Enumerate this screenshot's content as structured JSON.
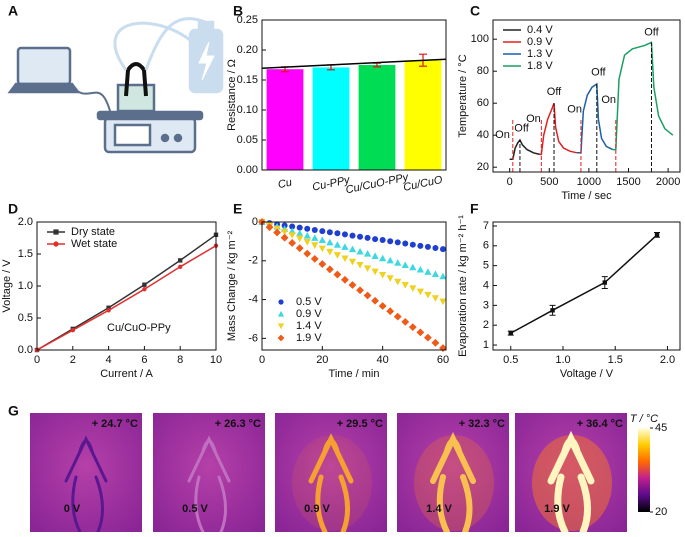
{
  "panel_labels": [
    "A",
    "B",
    "C",
    "D",
    "E",
    "F",
    "G"
  ],
  "chart_data": [
    {
      "type": "bar",
      "y_label": "Resistance / Ω",
      "categories": [
        "Cu",
        "Cu-PPy",
        "Cu/CuO-PPy",
        "Cu/CuO"
      ],
      "values": [
        0.168,
        0.171,
        0.175,
        0.183
      ],
      "errors": [
        0.004,
        0.004,
        0.003,
        0.01
      ],
      "colors": [
        "#ff00ff",
        "#00ffff",
        "#00dd55",
        "#ffff00"
      ],
      "error_color": "#e01010",
      "fit_color": "#000000",
      "ylim": [
        0,
        0.25
      ],
      "yticks": [
        {
          "value": 0,
          "label": "0.00"
        },
        0.05,
        {
          "value": 0.1,
          "label": "0.10"
        },
        0.15,
        {
          "value": 0.2,
          "label": "0.20"
        },
        0.25
      ]
    },
    {
      "type": "line",
      "y_label": "Temperature / °C",
      "x_label": "Time / sec",
      "xlim": [
        -210,
        2150
      ],
      "xticks": [
        0,
        500,
        1000,
        1500,
        2000
      ],
      "ylim": [
        17,
        112
      ],
      "yticks": [
        20,
        40,
        60,
        80,
        100
      ],
      "legend": "upper left",
      "annotations": [
        "On",
        "Off",
        "On",
        "Off",
        "On",
        "Off",
        "On",
        "Off"
      ],
      "series": [
        {
          "name": "0.4 V",
          "color": "#222222",
          "x": [
            0,
            40,
            70,
            100,
            130,
            160,
            220,
            300,
            380
          ],
          "values": [
            25,
            25,
            32,
            35,
            37,
            34,
            31,
            29,
            28
          ]
        },
        {
          "name": "0.9 V",
          "color": "#e02020",
          "x": [
            380,
            400,
            430,
            480,
            530,
            560,
            580,
            620,
            680,
            760,
            850
          ],
          "values": [
            28,
            28,
            40,
            50,
            56,
            60,
            45,
            36,
            32,
            30,
            29
          ]
        },
        {
          "name": "1.3 V",
          "color": "#1f5fa8",
          "x": [
            850,
            900,
            930,
            980,
            1040,
            1100,
            1120,
            1160,
            1220,
            1300
          ],
          "values": [
            29,
            29,
            55,
            65,
            70,
            72,
            50,
            38,
            33,
            31
          ]
        },
        {
          "name": "1.8 V",
          "color": "#1aa060",
          "x": [
            1300,
            1340,
            1380,
            1450,
            1550,
            1700,
            1790,
            1820,
            1880,
            1960,
            2060
          ],
          "values": [
            31,
            31,
            75,
            90,
            94,
            96,
            98,
            70,
            52,
            44,
            40
          ]
        }
      ]
    },
    {
      "type": "line",
      "y_label": "Voltage / V",
      "x_label": "Current / A",
      "xlim": [
        0,
        10
      ],
      "xticks": [
        0,
        2,
        4,
        6,
        8,
        10
      ],
      "ylim": [
        0,
        2
      ],
      "yticks": [
        {
          "value": 0,
          "label": "0.0"
        },
        0.5,
        {
          "value": 1,
          "label": "1.0"
        },
        1.5,
        {
          "value": 2,
          "label": "2.0"
        }
      ],
      "legend": "upper left",
      "annotation": "Cu/CuO-PPy",
      "x": [
        0,
        2,
        4,
        6,
        8,
        10
      ],
      "series": [
        {
          "name": "Dry state",
          "color": "#333333",
          "marker": "s",
          "values": [
            0,
            0.33,
            0.66,
            1.02,
            1.4,
            1.8
          ]
        },
        {
          "name": "Wet state",
          "color": "#e03030",
          "marker": "o",
          "values": [
            0,
            0.31,
            0.62,
            0.95,
            1.3,
            1.63
          ]
        }
      ]
    },
    {
      "type": "scatter",
      "y_label": "Mass Change / kg m⁻²",
      "x_label": "Time / min",
      "xlim": [
        0,
        61
      ],
      "xticks": [
        0,
        20,
        40,
        60
      ],
      "ylim": [
        -6.6,
        0
      ],
      "yticks": [
        0,
        -2,
        -4,
        -6
      ],
      "legend": "lower left",
      "x": [
        0,
        2.5,
        5,
        7.5,
        10,
        12.5,
        15,
        17.5,
        20,
        22.5,
        25,
        27.5,
        30,
        32.5,
        35,
        37.5,
        40,
        42.5,
        45,
        47.5,
        50,
        52.5,
        55,
        57.5,
        60
      ],
      "series": [
        {
          "name": "0.5 V",
          "color": "#1f3fd0",
          "marker": "o",
          "values": [
            0,
            -0.06,
            -0.12,
            -0.18,
            -0.23,
            -0.29,
            -0.35,
            -0.41,
            -0.47,
            -0.53,
            -0.58,
            -0.64,
            -0.7,
            -0.76,
            -0.82,
            -0.88,
            -0.93,
            -0.99,
            -1.05,
            -1.11,
            -1.17,
            -1.23,
            -1.28,
            -1.34,
            -1.4
          ]
        },
        {
          "name": "0.9 V",
          "color": "#40d8e0",
          "marker": "^",
          "values": [
            0,
            -0.12,
            -0.23,
            -0.35,
            -0.47,
            -0.58,
            -0.7,
            -0.82,
            -0.93,
            -1.05,
            -1.17,
            -1.28,
            -1.4,
            -1.52,
            -1.63,
            -1.75,
            -1.87,
            -1.98,
            -2.1,
            -2.22,
            -2.33,
            -2.45,
            -2.57,
            -2.68,
            -2.8
          ]
        },
        {
          "name": "1.4 V",
          "color": "#f0d020",
          "marker": "v",
          "values": [
            0,
            -0.17,
            -0.34,
            -0.51,
            -0.68,
            -0.85,
            -1.03,
            -1.2,
            -1.37,
            -1.54,
            -1.71,
            -1.88,
            -2.05,
            -2.22,
            -2.39,
            -2.56,
            -2.73,
            -2.9,
            -3.08,
            -3.25,
            -3.42,
            -3.59,
            -3.76,
            -3.93,
            -4.1
          ]
        },
        {
          "name": "1.9 V",
          "color": "#f05a18",
          "marker": "D",
          "values": [
            0,
            -0.27,
            -0.54,
            -0.81,
            -1.08,
            -1.35,
            -1.63,
            -1.9,
            -2.17,
            -2.44,
            -2.71,
            -2.98,
            -3.25,
            -3.52,
            -3.79,
            -4.06,
            -4.33,
            -4.6,
            -4.88,
            -5.15,
            -5.42,
            -5.69,
            -5.96,
            -6.23,
            -6.5
          ]
        }
      ]
    },
    {
      "type": "line",
      "y_label": "Evaporation rate / kg m⁻² h⁻¹",
      "x_label": "Voltage / V",
      "xlim": [
        0.33,
        2.12
      ],
      "xticks": [
        0.5,
        {
          "value": 1,
          "label": "1.0"
        },
        1.5,
        {
          "value": 2,
          "label": "2.0"
        }
      ],
      "ylim": [
        0.75,
        7.2
      ],
      "yticks": [
        1,
        2,
        3,
        4,
        5,
        6,
        7
      ],
      "x": [
        0.5,
        0.9,
        1.4,
        1.9
      ],
      "series": [
        {
          "color": "#111111",
          "marker": "s",
          "values": [
            1.6,
            2.75,
            4.15,
            6.55
          ],
          "errors": [
            0.1,
            0.25,
            0.3,
            0.12
          ]
        }
      ]
    }
  ],
  "thermal": {
    "images": [
      {
        "temperature": "+ 24.7 °C",
        "voltage": "0 V"
      },
      {
        "temperature": "+ 26.3 °C",
        "voltage": "0.5 V"
      },
      {
        "temperature": "+ 29.5 °C",
        "voltage": "0.9 V"
      },
      {
        "temperature": "+ 32.3 °C",
        "voltage": "1.4 V"
      },
      {
        "temperature": "+ 36.4 °C",
        "voltage": "1.9 V"
      }
    ],
    "colorbar": {
      "label": "T / °C",
      "lim": [
        20,
        45
      ],
      "ticks": [
        20,
        45
      ],
      "colors": [
        "#ffffe0",
        "#ffcc00",
        "#ff6a00",
        "#c01f8f",
        "#5a0a8a",
        "#000000"
      ]
    }
  }
}
